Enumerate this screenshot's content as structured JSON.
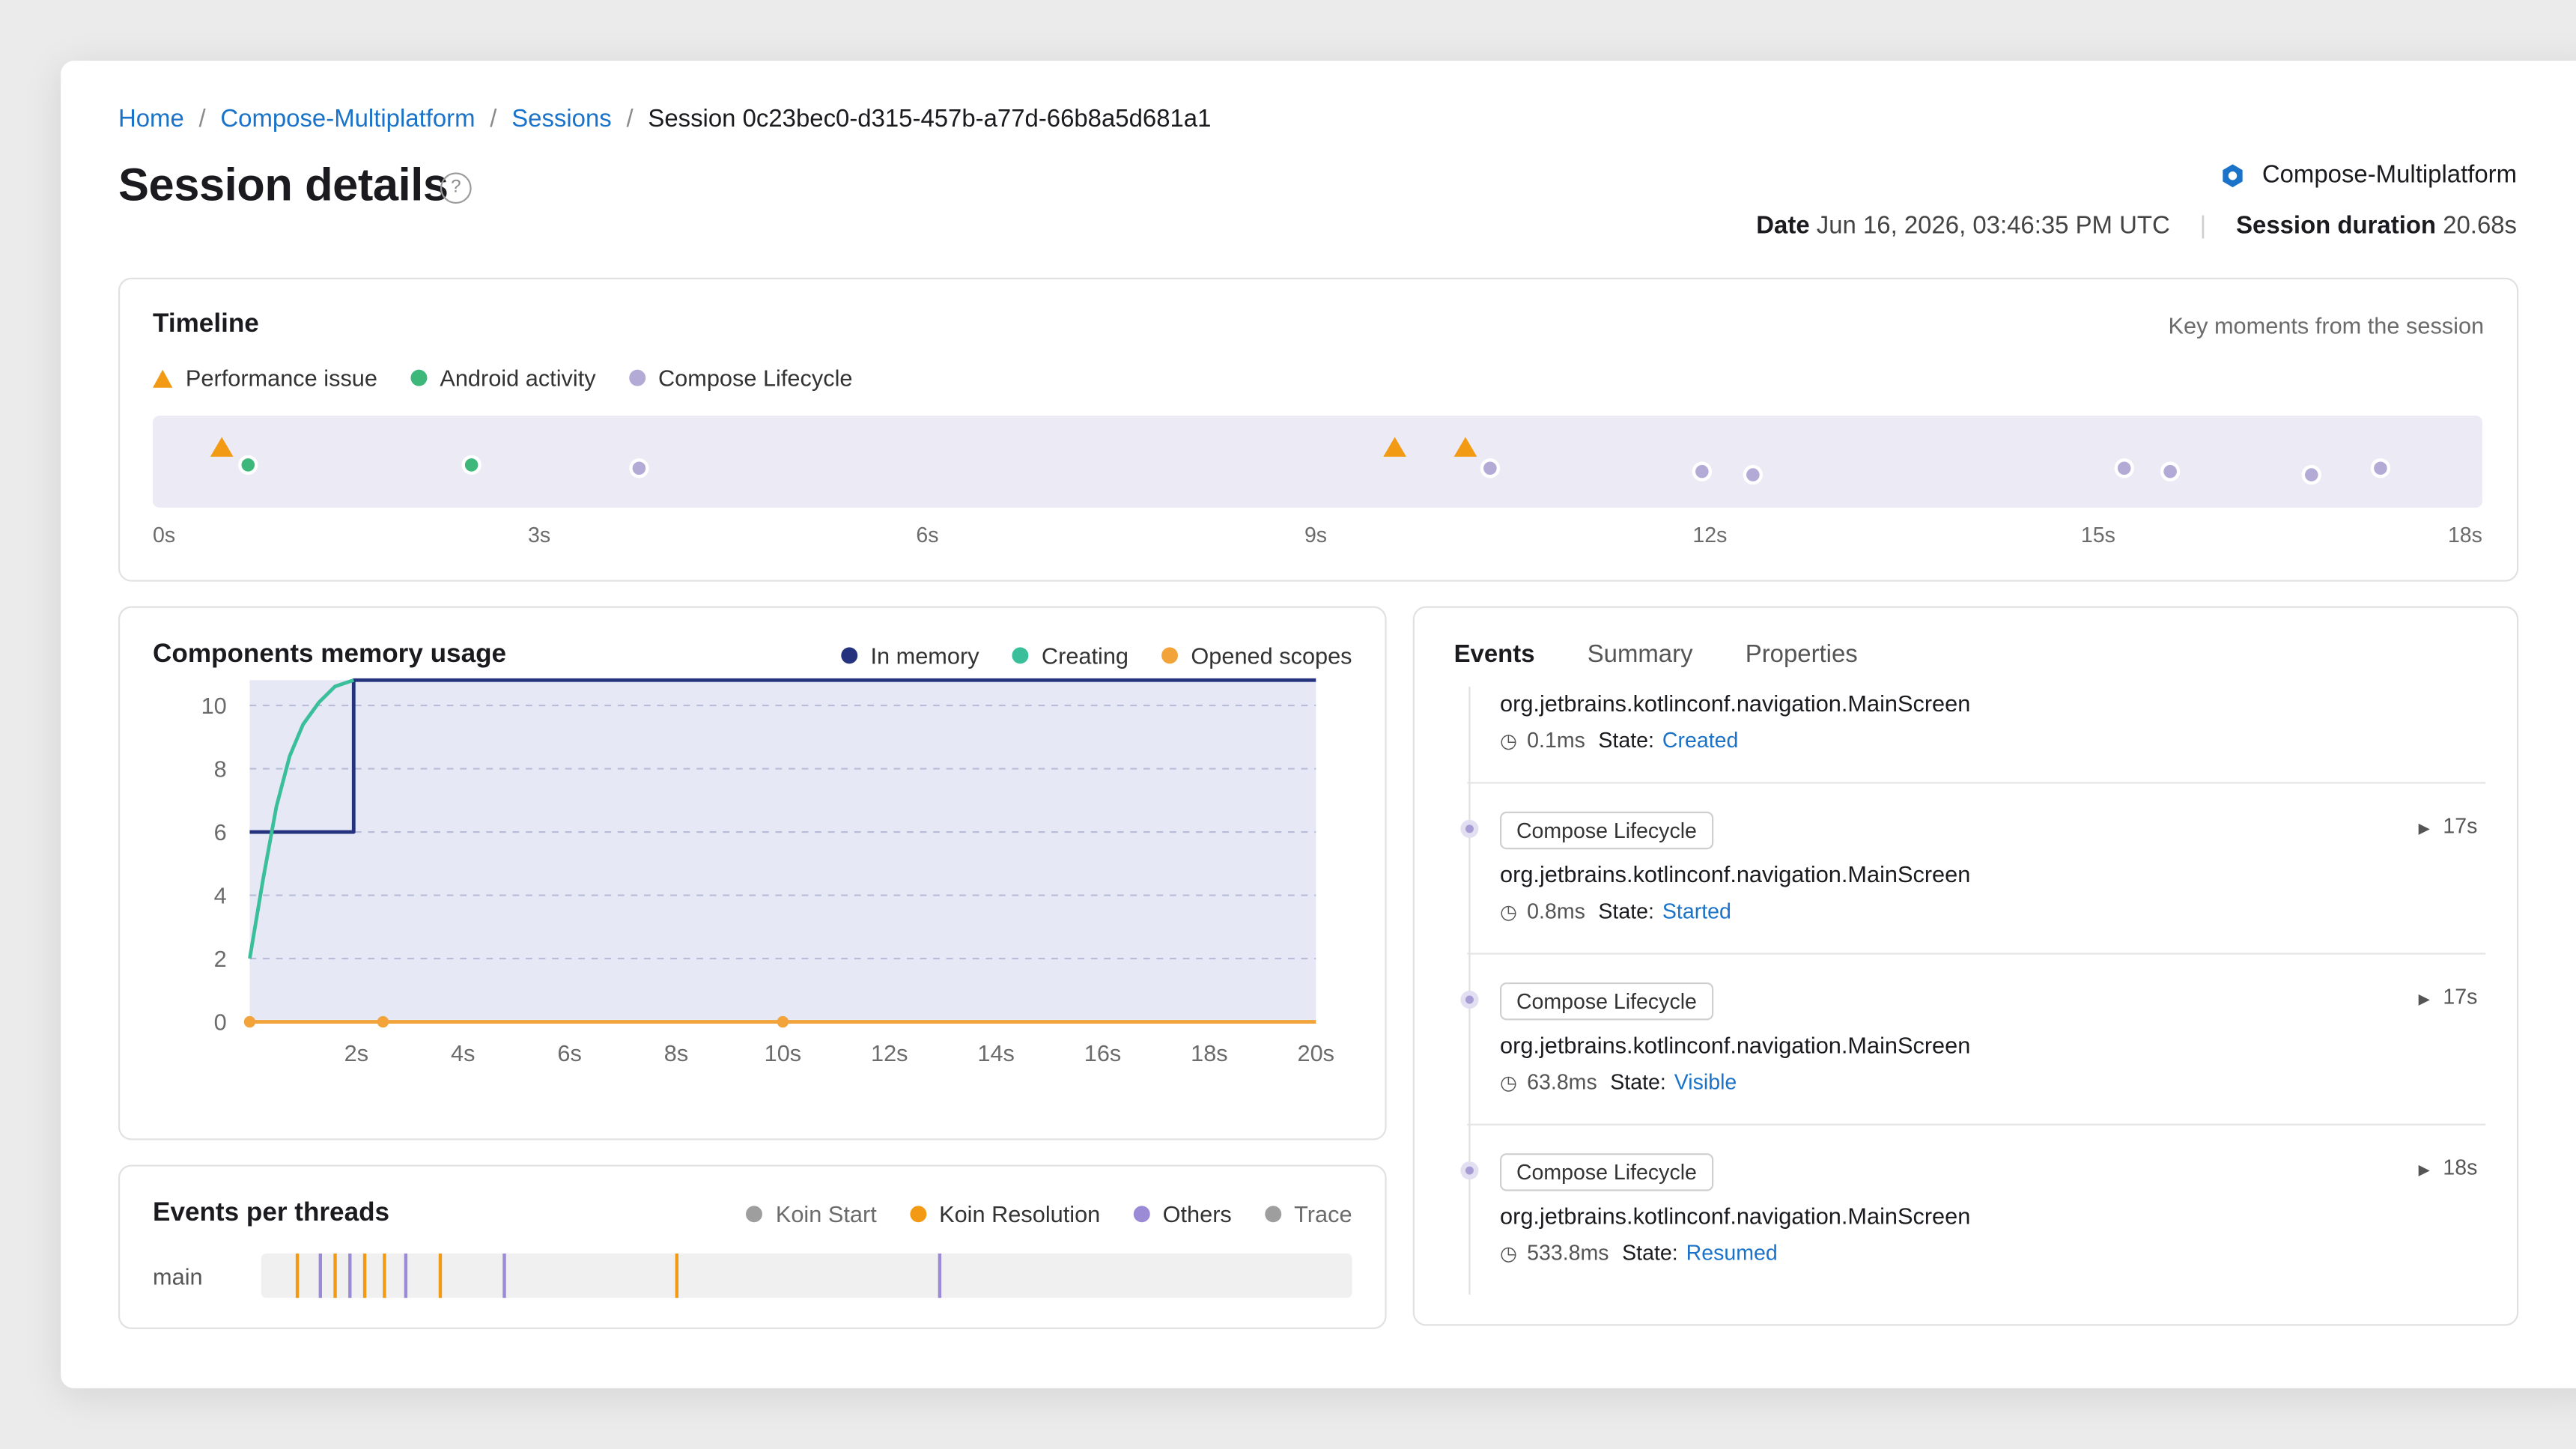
{
  "breadcrumb": {
    "home": "Home",
    "project": "Compose-Multiplatform",
    "sessions": "Sessions",
    "current": "Session 0c23bec0-d315-457b-a77d-66b8a5d681a1"
  },
  "header": {
    "title": "Session details",
    "help": "?",
    "project_name": "Compose-Multiplatform",
    "date_label": "Date",
    "date_value": "Jun 16, 2026, 03:46:35 PM UTC",
    "duration_label": "Session duration",
    "duration_value": "20.68s"
  },
  "colors": {
    "performance": "#f29a13",
    "android": "#3db87a",
    "lifecycle": "#b3aad6",
    "in_memory": "#25337f",
    "creating": "#3bbf9b",
    "opened_scopes": "#f2a33a",
    "koin_start": "#9e9e9e",
    "koin_resolution": "#f29a13",
    "others": "#9b8ad6",
    "trace": "#9e9e9e",
    "link": "#1a73c8"
  },
  "timeline": {
    "title": "Timeline",
    "subtitle": "Key moments from the session",
    "legend": [
      "Performance issue",
      "Android activity",
      "Compose Lifecycle"
    ],
    "ticks": [
      "0s",
      "3s",
      "6s",
      "9s",
      "12s",
      "15s",
      "18s"
    ],
    "max_seconds": 18,
    "events": [
      {
        "type": "performance",
        "t": 0.45
      },
      {
        "type": "android",
        "t": 0.65
      },
      {
        "type": "android",
        "t": 2.4
      },
      {
        "type": "lifecycle",
        "t": 3.7
      },
      {
        "type": "performance",
        "t": 9.6
      },
      {
        "type": "performance",
        "t": 10.15
      },
      {
        "type": "lifecycle",
        "t": 10.35
      },
      {
        "type": "lifecycle",
        "t": 12.0
      },
      {
        "type": "lifecycle",
        "t": 12.4
      },
      {
        "type": "lifecycle",
        "t": 15.3
      },
      {
        "type": "lifecycle",
        "t": 15.65
      },
      {
        "type": "lifecycle",
        "t": 16.75
      },
      {
        "type": "lifecycle",
        "t": 17.3
      }
    ]
  },
  "memory": {
    "title": "Components memory usage",
    "legend": [
      "In memory",
      "Creating",
      "Opened scopes"
    ]
  },
  "chart_data": {
    "type": "line",
    "title": "Components memory usage",
    "xlabel": "",
    "ylabel": "",
    "x_ticks": [
      "2s",
      "4s",
      "6s",
      "8s",
      "10s",
      "12s",
      "14s",
      "16s",
      "18s",
      "20s"
    ],
    "y_ticks": [
      "0",
      "2",
      "4",
      "6",
      "8",
      "10"
    ],
    "xlim": [
      0,
      20
    ],
    "ylim": [
      0,
      10.8
    ],
    "grid": true,
    "legend_position": "top-right",
    "series": [
      {
        "name": "In memory",
        "x": [
          0,
          1.95,
          1.95,
          20
        ],
        "y": [
          6,
          6,
          10.8,
          10.8
        ]
      },
      {
        "name": "Creating",
        "x": [
          0,
          0.25,
          0.5,
          0.75,
          1.0,
          1.3,
          1.6,
          1.95
        ],
        "y": [
          2,
          4.5,
          6.8,
          8.4,
          9.4,
          10.1,
          10.6,
          10.8
        ]
      },
      {
        "name": "Opened scopes",
        "x": [
          0,
          2.5,
          10,
          20
        ],
        "y": [
          0,
          0,
          0,
          0
        ],
        "markers": [
          0,
          2.5,
          10
        ]
      }
    ]
  },
  "threads": {
    "title": "Events per threads",
    "legend": [
      "Koin Start",
      "Koin Resolution",
      "Others",
      "Trace"
    ],
    "row_label": "main",
    "marks": [
      {
        "type": "koin_resolution",
        "pos": 0.032
      },
      {
        "type": "others",
        "pos": 0.052
      },
      {
        "type": "koin_resolution",
        "pos": 0.066
      },
      {
        "type": "others",
        "pos": 0.08
      },
      {
        "type": "koin_resolution",
        "pos": 0.094
      },
      {
        "type": "koin_resolution",
        "pos": 0.111
      },
      {
        "type": "others",
        "pos": 0.131
      },
      {
        "type": "koin_resolution",
        "pos": 0.162
      },
      {
        "type": "others",
        "pos": 0.221
      },
      {
        "type": "koin_resolution",
        "pos": 0.38
      },
      {
        "type": "others",
        "pos": 0.621
      }
    ]
  },
  "events_panel": {
    "tabs": [
      "Events",
      "Summary",
      "Properties"
    ],
    "items": [
      {
        "tag": "",
        "name": "org.jetbrains.kotlinconf.navigation.MainScreen",
        "duration": "0.1ms",
        "state_label": "State:",
        "state": "Created",
        "time": ""
      },
      {
        "tag": "Compose Lifecycle",
        "name": "org.jetbrains.kotlinconf.navigation.MainScreen",
        "duration": "0.8ms",
        "state_label": "State:",
        "state": "Started",
        "time": "17s"
      },
      {
        "tag": "Compose Lifecycle",
        "name": "org.jetbrains.kotlinconf.navigation.MainScreen",
        "duration": "63.8ms",
        "state_label": "State:",
        "state": "Visible",
        "time": "17s"
      },
      {
        "tag": "Compose Lifecycle",
        "name": "org.jetbrains.kotlinconf.navigation.MainScreen",
        "duration": "533.8ms",
        "state_label": "State:",
        "state": "Resumed",
        "time": "18s"
      }
    ]
  }
}
